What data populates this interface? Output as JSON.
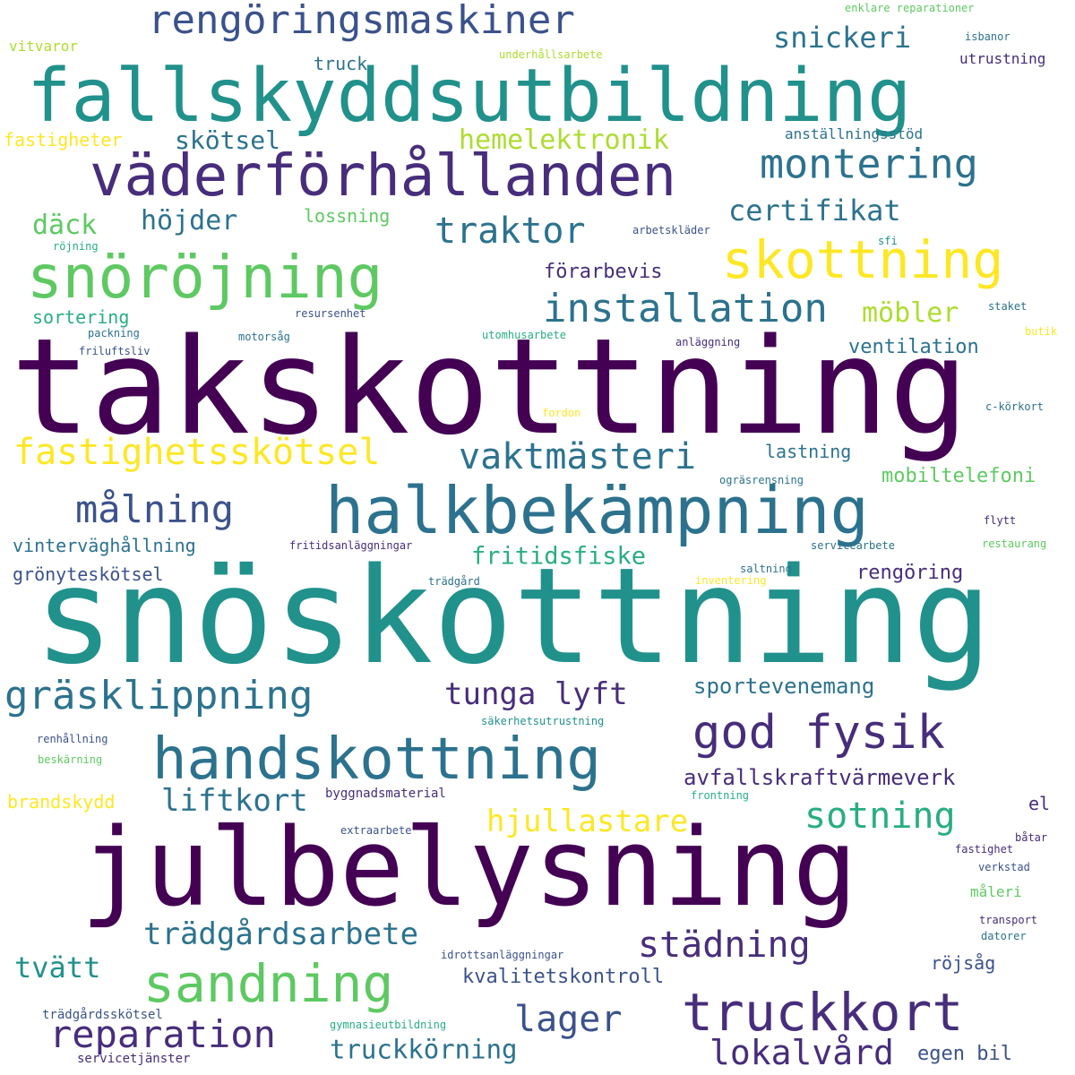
{
  "palette": {
    "dark_purple": "#440154",
    "indigo": "#472d7b",
    "slate_blue": "#3b528b",
    "steel_blue": "#2c728e",
    "teal": "#21918c",
    "sea_green": "#28ae80",
    "green": "#5ec962",
    "lime": "#addc30",
    "yellow": "#fde725"
  },
  "words": [
    {
      "text": "takskottning",
      "color": "dark_purple"
    },
    {
      "text": "snöskottning",
      "color": "teal"
    },
    {
      "text": "julbelysning",
      "color": "dark_purple"
    },
    {
      "text": "fallskyddsutbildning",
      "color": "teal"
    },
    {
      "text": "halkbekämpning",
      "color": "steel_blue"
    },
    {
      "text": "väderförhållanden",
      "color": "indigo"
    },
    {
      "text": "handskottning",
      "color": "steel_blue"
    },
    {
      "text": "snöröjning",
      "color": "green"
    },
    {
      "text": "skottning",
      "color": "yellow"
    },
    {
      "text": "rengöringsmaskiner",
      "color": "slate_blue"
    },
    {
      "text": "truckkort",
      "color": "indigo"
    },
    {
      "text": "god fysik",
      "color": "indigo"
    },
    {
      "text": "montering",
      "color": "steel_blue"
    },
    {
      "text": "sandning",
      "color": "green"
    },
    {
      "text": "gräsklippning",
      "color": "steel_blue"
    },
    {
      "text": "installation",
      "color": "steel_blue"
    },
    {
      "text": "reparation",
      "color": "indigo"
    },
    {
      "text": "städning",
      "color": "indigo"
    },
    {
      "text": "fastighetsskötsel",
      "color": "yellow"
    },
    {
      "text": "vaktmästeri",
      "color": "steel_blue"
    },
    {
      "text": "målning",
      "color": "slate_blue"
    },
    {
      "text": "traktor",
      "color": "steel_blue"
    },
    {
      "text": "lager",
      "color": "slate_blue"
    },
    {
      "text": "sotning",
      "color": "sea_green"
    },
    {
      "text": "lokalvård",
      "color": "indigo"
    },
    {
      "text": "trädgårdsarbete",
      "color": "steel_blue"
    },
    {
      "text": "liftkort",
      "color": "steel_blue"
    },
    {
      "text": "tunga lyft",
      "color": "indigo"
    },
    {
      "text": "hjullastare",
      "color": "yellow"
    },
    {
      "text": "snickeri",
      "color": "steel_blue"
    },
    {
      "text": "certifikat",
      "color": "steel_blue"
    },
    {
      "text": "hemelektronik",
      "color": "lime"
    },
    {
      "text": "höjder",
      "color": "steel_blue"
    },
    {
      "text": "däck",
      "color": "green"
    },
    {
      "text": "skötsel",
      "color": "steel_blue"
    },
    {
      "text": "tvätt",
      "color": "teal"
    },
    {
      "text": "möbler",
      "color": "lime"
    },
    {
      "text": "fritidsfiske",
      "color": "sea_green"
    },
    {
      "text": "truckkörning",
      "color": "steel_blue"
    },
    {
      "text": "sportevenemang",
      "color": "steel_blue"
    },
    {
      "text": "avfallskraftvärmeverk",
      "color": "indigo"
    },
    {
      "text": "kvalitetskontroll",
      "color": "slate_blue"
    },
    {
      "text": "egen bil",
      "color": "slate_blue"
    },
    {
      "text": "röjsåg",
      "color": "slate_blue"
    },
    {
      "text": "förarbevis",
      "color": "indigo"
    },
    {
      "text": "ventilation",
      "color": "steel_blue"
    },
    {
      "text": "mobiltelefoni",
      "color": "green"
    },
    {
      "text": "lastning",
      "color": "steel_blue"
    },
    {
      "text": "lossning",
      "color": "green"
    },
    {
      "text": "sortering",
      "color": "sea_green"
    },
    {
      "text": "rengöring",
      "color": "indigo"
    },
    {
      "text": "vinterväghållning",
      "color": "steel_blue"
    },
    {
      "text": "grönyteskötsel",
      "color": "slate_blue"
    },
    {
      "text": "brandskydd",
      "color": "yellow"
    },
    {
      "text": "fastigheter",
      "color": "yellow"
    },
    {
      "text": "truck",
      "color": "steel_blue"
    },
    {
      "text": "utrustning",
      "color": "indigo"
    },
    {
      "text": "anställningsstöd",
      "color": "steel_blue"
    },
    {
      "text": "el",
      "color": "indigo"
    },
    {
      "text": "vitvaror",
      "color": "lime"
    },
    {
      "text": "underhållsarbete",
      "color": "lime"
    },
    {
      "text": "enklare reparationer",
      "color": "green"
    },
    {
      "text": "isbanor",
      "color": "steel_blue"
    },
    {
      "text": "röjning",
      "color": "sea_green"
    },
    {
      "text": "arbetskläder",
      "color": "slate_blue"
    },
    {
      "text": "sfi",
      "color": "teal"
    },
    {
      "text": "resursenhet",
      "color": "slate_blue"
    },
    {
      "text": "packning",
      "color": "steel_blue"
    },
    {
      "text": "motorsåg",
      "color": "steel_blue"
    },
    {
      "text": "utomhusarbete",
      "color": "sea_green"
    },
    {
      "text": "friluftsliv",
      "color": "slate_blue"
    },
    {
      "text": "anläggning",
      "color": "indigo"
    },
    {
      "text": "staket",
      "color": "steel_blue"
    },
    {
      "text": "butik",
      "color": "yellow"
    },
    {
      "text": "fordon",
      "color": "yellow"
    },
    {
      "text": "c-körkort",
      "color": "steel_blue"
    },
    {
      "text": "ogräsrensning",
      "color": "steel_blue"
    },
    {
      "text": "flytt",
      "color": "indigo"
    },
    {
      "text": "fritidsanläggningar",
      "color": "indigo"
    },
    {
      "text": "servicearbete",
      "color": "steel_blue"
    },
    {
      "text": "restaurang",
      "color": "green"
    },
    {
      "text": "saltning",
      "color": "steel_blue"
    },
    {
      "text": "trädgård",
      "color": "steel_blue"
    },
    {
      "text": "inventering",
      "color": "yellow"
    },
    {
      "text": "säkerhetsutrustning",
      "color": "teal"
    },
    {
      "text": "renhållning",
      "color": "slate_blue"
    },
    {
      "text": "beskärning",
      "color": "green"
    },
    {
      "text": "byggnadsmaterial",
      "color": "indigo"
    },
    {
      "text": "frontning",
      "color": "sea_green"
    },
    {
      "text": "extraarbete",
      "color": "slate_blue"
    },
    {
      "text": "båtar",
      "color": "indigo"
    },
    {
      "text": "fastighet",
      "color": "indigo"
    },
    {
      "text": "verkstad",
      "color": "slate_blue"
    },
    {
      "text": "måleri",
      "color": "green"
    },
    {
      "text": "transport",
      "color": "indigo"
    },
    {
      "text": "idrottsanläggningar",
      "color": "slate_blue"
    },
    {
      "text": "datorer",
      "color": "steel_blue"
    },
    {
      "text": "trädgårdsskötsel",
      "color": "slate_blue"
    },
    {
      "text": "gymnasieutbildning",
      "color": "sea_green"
    },
    {
      "text": "servicetjänster",
      "color": "indigo"
    }
  ]
}
